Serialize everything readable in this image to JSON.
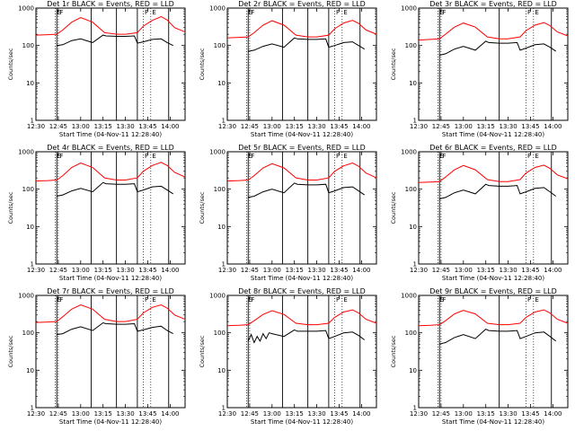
{
  "x_axis_label": "Start Time (04-Nov-11 12:28:40)",
  "y_axis_label": "Counts/sec",
  "x_ticks": [
    "12:30",
    "12:45",
    "13:00",
    "13:15",
    "13:30",
    "13:45",
    "14:00"
  ],
  "y_ticks": [
    "1",
    "10",
    "100",
    "1000"
  ],
  "markers": [
    {
      "label": "E",
      "time": "12:43"
    },
    {
      "label": "F",
      "time": "12:45"
    },
    {
      "label": "F",
      "time": "13:42"
    },
    {
      "label": "E",
      "time": "13:47"
    }
  ],
  "colors": {
    "events": "#000000",
    "lld": "#ff0000"
  },
  "chart_data": [
    {
      "type": "line",
      "title": "Det 1r BLACK = Events, RED = LLD",
      "xlabel": "Start Time (04-Nov-11 12:28:40)",
      "ylabel": "Counts/sec",
      "x_unit": "minutes after 12:30",
      "xlim": [
        0,
        100
      ],
      "ylim": [
        1,
        1000
      ],
      "y_scale": "log",
      "series": [
        {
          "name": "LLD",
          "color": "#ff0000",
          "x": [
            0,
            8,
            14,
            18,
            24,
            30,
            38,
            46,
            54,
            60,
            68,
            72,
            78,
            84,
            88,
            93,
            100
          ],
          "values": [
            190,
            195,
            200,
            260,
            420,
            560,
            420,
            220,
            200,
            200,
            220,
            330,
            470,
            590,
            480,
            300,
            230
          ]
        },
        {
          "name": "Events",
          "color": "#000000",
          "x": [
            14,
            18,
            24,
            30,
            38,
            45,
            47,
            54,
            60,
            66,
            68,
            72,
            78,
            84,
            88,
            92
          ],
          "values": [
            100,
            105,
            135,
            150,
            120,
            190,
            180,
            175,
            175,
            180,
            115,
            125,
            145,
            150,
            120,
            100
          ]
        }
      ],
      "lines_at": [
        14,
        37,
        54,
        68,
        89
      ]
    },
    {
      "type": "line",
      "title": "Det 2r BLACK = Events, RED = LLD",
      "xlabel": "Start Time (04-Nov-11 12:28:40)",
      "ylabel": "Counts/sec",
      "x_unit": "minutes after 12:30",
      "xlim": [
        0,
        100
      ],
      "ylim": [
        1,
        1000
      ],
      "y_scale": "log",
      "series": [
        {
          "name": "LLD",
          "color": "#ff0000",
          "x": [
            0,
            8,
            14,
            18,
            24,
            30,
            38,
            46,
            54,
            60,
            68,
            72,
            78,
            84,
            88,
            93,
            100
          ],
          "values": [
            160,
            165,
            170,
            220,
            350,
            460,
            350,
            190,
            170,
            170,
            190,
            280,
            400,
            470,
            390,
            260,
            200
          ]
        },
        {
          "name": "Events",
          "color": "#000000",
          "x": [
            14,
            18,
            24,
            30,
            38,
            45,
            47,
            54,
            60,
            66,
            68,
            72,
            78,
            84,
            88,
            92
          ],
          "values": [
            70,
            75,
            95,
            110,
            90,
            160,
            150,
            145,
            145,
            150,
            90,
            100,
            120,
            125,
            100,
            80
          ]
        }
      ],
      "lines_at": [
        14,
        37,
        54,
        68,
        89
      ]
    },
    {
      "type": "line",
      "title": "Det 3r BLACK = Events, RED = LLD",
      "xlabel": "Start Time (04-Nov-11 12:28:40)",
      "ylabel": "Counts/sec",
      "x_unit": "minutes after 12:30",
      "xlim": [
        0,
        100
      ],
      "ylim": [
        1,
        1000
      ],
      "y_scale": "log",
      "series": [
        {
          "name": "LLD",
          "color": "#ff0000",
          "x": [
            0,
            8,
            14,
            18,
            24,
            30,
            38,
            46,
            54,
            60,
            68,
            72,
            78,
            84,
            88,
            93,
            100
          ],
          "values": [
            140,
            145,
            150,
            200,
            310,
            400,
            310,
            170,
            150,
            150,
            170,
            250,
            350,
            410,
            340,
            230,
            180
          ]
        },
        {
          "name": "Events",
          "color": "#000000",
          "x": [
            14,
            18,
            24,
            30,
            38,
            45,
            47,
            54,
            60,
            66,
            68,
            72,
            78,
            84,
            88,
            92
          ],
          "values": [
            55,
            60,
            80,
            95,
            75,
            130,
            120,
            115,
            115,
            120,
            75,
            85,
            105,
            110,
            90,
            70
          ]
        }
      ],
      "lines_at": [
        14,
        54,
        89
      ]
    },
    {
      "type": "line",
      "title": "Det 4r BLACK = Events, RED = LLD",
      "xlabel": "Start Time (04-Nov-11 12:28:40)",
      "ylabel": "Counts/sec",
      "x_unit": "minutes after 12:30",
      "xlim": [
        0,
        100
      ],
      "ylim": [
        1,
        1000
      ],
      "y_scale": "log",
      "series": [
        {
          "name": "LLD",
          "color": "#ff0000",
          "x": [
            0,
            8,
            14,
            18,
            24,
            30,
            38,
            46,
            54,
            60,
            68,
            72,
            78,
            84,
            88,
            93,
            100
          ],
          "values": [
            165,
            170,
            175,
            230,
            380,
            500,
            380,
            200,
            175,
            175,
            200,
            300,
            430,
            520,
            430,
            280,
            210
          ]
        },
        {
          "name": "Events",
          "color": "#000000",
          "x": [
            14,
            18,
            24,
            30,
            38,
            45,
            47,
            54,
            60,
            66,
            68,
            72,
            78,
            84,
            88,
            92
          ],
          "values": [
            65,
            70,
            90,
            105,
            85,
            150,
            140,
            135,
            135,
            140,
            85,
            95,
            115,
            120,
            95,
            75
          ]
        }
      ],
      "lines_at": [
        14,
        37,
        54,
        68,
        89
      ]
    },
    {
      "type": "line",
      "title": "Det 5r BLACK = Events, RED = LLD",
      "xlabel": "Start Time (04-Nov-11 12:28:40)",
      "ylabel": "Counts/sec",
      "x_unit": "minutes after 12:30",
      "xlim": [
        0,
        100
      ],
      "ylim": [
        1,
        1000
      ],
      "y_scale": "log",
      "series": [
        {
          "name": "LLD",
          "color": "#ff0000",
          "x": [
            0,
            8,
            14,
            18,
            24,
            30,
            38,
            46,
            54,
            60,
            68,
            72,
            78,
            84,
            88,
            93,
            100
          ],
          "values": [
            165,
            170,
            175,
            230,
            370,
            480,
            370,
            200,
            175,
            175,
            200,
            300,
            420,
            500,
            410,
            270,
            200
          ]
        },
        {
          "name": "Events",
          "color": "#000000",
          "x": [
            14,
            18,
            24,
            30,
            38,
            45,
            47,
            54,
            60,
            66,
            68,
            72,
            78,
            84,
            88,
            92
          ],
          "values": [
            60,
            65,
            85,
            100,
            80,
            145,
            135,
            130,
            130,
            135,
            80,
            90,
            110,
            115,
            90,
            70
          ]
        }
      ],
      "lines_at": [
        14,
        37,
        54,
        68,
        89
      ]
    },
    {
      "type": "line",
      "title": "Det 6r BLACK = Events, RED = LLD",
      "xlabel": "Start Time (04-Nov-11 12:28:40)",
      "ylabel": "Counts/sec",
      "x_unit": "minutes after 12:30",
      "xlim": [
        0,
        100
      ],
      "ylim": [
        1,
        1000
      ],
      "y_scale": "log",
      "series": [
        {
          "name": "LLD",
          "color": "#ff0000",
          "x": [
            0,
            8,
            14,
            18,
            24,
            30,
            38,
            46,
            54,
            60,
            68,
            72,
            78,
            84,
            88,
            93,
            100
          ],
          "values": [
            150,
            155,
            160,
            210,
            330,
            430,
            330,
            180,
            160,
            160,
            180,
            270,
            380,
            440,
            360,
            240,
            190
          ]
        },
        {
          "name": "Events",
          "color": "#000000",
          "x": [
            14,
            18,
            24,
            30,
            38,
            45,
            47,
            54,
            60,
            66,
            68,
            72,
            78,
            84,
            88,
            92
          ],
          "values": [
            55,
            60,
            80,
            95,
            75,
            135,
            125,
            120,
            120,
            125,
            75,
            85,
            105,
            110,
            85,
            65
          ]
        }
      ],
      "lines_at": [
        14,
        54,
        89
      ]
    },
    {
      "type": "line",
      "title": "Det 7r BLACK = Events, RED = LLD",
      "xlabel": "Start Time (04-Nov-11 12:28:40)",
      "ylabel": "Counts/sec",
      "x_unit": "minutes after 12:30",
      "xlim": [
        0,
        100
      ],
      "ylim": [
        1,
        1000
      ],
      "y_scale": "log",
      "series": [
        {
          "name": "LLD",
          "color": "#ff0000",
          "x": [
            0,
            8,
            14,
            18,
            24,
            30,
            38,
            46,
            54,
            60,
            68,
            72,
            78,
            84,
            88,
            93,
            100
          ],
          "values": [
            190,
            195,
            200,
            270,
            430,
            560,
            430,
            230,
            200,
            200,
            230,
            340,
            480,
            560,
            460,
            300,
            230
          ]
        },
        {
          "name": "Events",
          "color": "#000000",
          "x": [
            14,
            18,
            24,
            30,
            38,
            45,
            47,
            54,
            60,
            66,
            68,
            72,
            78,
            84,
            88,
            92
          ],
          "values": [
            90,
            95,
            125,
            145,
            115,
            185,
            175,
            170,
            170,
            175,
            110,
            120,
            140,
            150,
            115,
            95
          ]
        }
      ],
      "lines_at": [
        14,
        37,
        54,
        68,
        89
      ]
    },
    {
      "type": "line",
      "title": "Det 8r BLACK = Events, RED = LLD",
      "xlabel": "Start Time (04-Nov-11 12:28:40)",
      "ylabel": "Counts/sec",
      "x_unit": "minutes after 12:30",
      "xlim": [
        0,
        100
      ],
      "ylim": [
        1,
        1000
      ],
      "y_scale": "log",
      "series": [
        {
          "name": "LLD",
          "color": "#ff0000",
          "x": [
            0,
            8,
            14,
            18,
            24,
            30,
            38,
            46,
            54,
            60,
            68,
            72,
            78,
            84,
            88,
            93,
            100
          ],
          "values": [
            155,
            160,
            165,
            210,
            310,
            390,
            310,
            180,
            165,
            165,
            180,
            260,
            360,
            410,
            340,
            230,
            180
          ]
        },
        {
          "name": "Events",
          "color": "#000000",
          "x": [
            14,
            16,
            18,
            20,
            22,
            24,
            26,
            28,
            30,
            38,
            45,
            47,
            54,
            60,
            66,
            68,
            72,
            78,
            84,
            88,
            92
          ],
          "values": [
            60,
            90,
            55,
            80,
            60,
            95,
            70,
            100,
            95,
            80,
            120,
            110,
            110,
            110,
            115,
            70,
            80,
            100,
            105,
            85,
            65
          ]
        }
      ],
      "lines_at": [
        14,
        37,
        54,
        68,
        89
      ]
    },
    {
      "type": "line",
      "title": "Det 9r BLACK = Events, RED = LLD",
      "xlabel": "Start Time (04-Nov-11 12:28:40)",
      "ylabel": "Counts/sec",
      "x_unit": "minutes after 12:30",
      "xlim": [
        0,
        100
      ],
      "ylim": [
        1,
        1000
      ],
      "y_scale": "log",
      "series": [
        {
          "name": "LLD",
          "color": "#ff0000",
          "x": [
            0,
            8,
            14,
            18,
            24,
            30,
            38,
            46,
            54,
            60,
            68,
            72,
            78,
            84,
            88,
            93,
            100
          ],
          "values": [
            155,
            160,
            165,
            210,
            320,
            400,
            320,
            180,
            165,
            165,
            180,
            260,
            360,
            410,
            340,
            230,
            180
          ]
        },
        {
          "name": "Events",
          "color": "#000000",
          "x": [
            14,
            18,
            24,
            30,
            38,
            45,
            47,
            54,
            60,
            66,
            68,
            72,
            78,
            84,
            88,
            92
          ],
          "values": [
            50,
            55,
            75,
            90,
            70,
            125,
            115,
            110,
            110,
            115,
            70,
            80,
            100,
            105,
            80,
            60
          ]
        }
      ],
      "lines_at": [
        14,
        54,
        89
      ]
    }
  ]
}
